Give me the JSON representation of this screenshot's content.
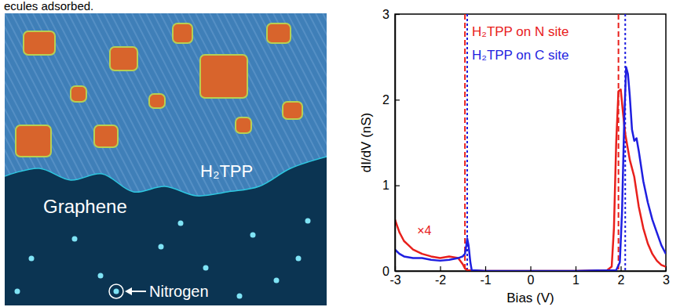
{
  "caption_fragment": "ecules adsorbed.",
  "image": {
    "labels": [
      "H₂TPP",
      "Graphene",
      "Nitrogen"
    ]
  },
  "chart_data": {
    "type": "line",
    "xlabel": "Bias (V)",
    "ylabel": "dI/dV (nS)",
    "xlim": [
      -3,
      3
    ],
    "xticks": [
      -3,
      -2,
      -1,
      0,
      1,
      2,
      3
    ],
    "ylim": [
      0,
      3
    ],
    "yticks": [
      0,
      1,
      2,
      3
    ],
    "legend": "upper center",
    "annotations": [
      {
        "text": "×4",
        "x": -2.35,
        "y": 0.42,
        "color": "#e8201c"
      }
    ],
    "series": [
      {
        "name": "H₂TPP on N site",
        "color": "#e8201c",
        "x": [
          -3,
          -2.9,
          -2.8,
          -2.7,
          -2.6,
          -2.4,
          -2.2,
          -2.0,
          -1.8,
          -1.6,
          -1.5,
          -1.45,
          -1.4,
          -1,
          0,
          1,
          1.7,
          1.8,
          1.85,
          1.9,
          1.95,
          2.0,
          2.05,
          2.1,
          2.2,
          2.3,
          2.4,
          2.5,
          2.6,
          2.7,
          2.8,
          2.9,
          3.0
        ],
        "values": [
          0.6,
          0.45,
          0.35,
          0.3,
          0.25,
          0.2,
          0.17,
          0.15,
          0.17,
          0.15,
          0.08,
          0.03,
          0.01,
          0,
          0,
          0,
          0.01,
          0.05,
          0.5,
          1.5,
          2.1,
          2.12,
          1.85,
          1.6,
          1.3,
          1.1,
          0.75,
          0.5,
          0.32,
          0.2,
          0.12,
          0.07,
          0.05
        ],
        "onsets": [
          -1.45,
          1.95
        ]
      },
      {
        "name": "H₂TPP on C site",
        "color": "#1f1fe0",
        "x": [
          -3,
          -2.9,
          -2.8,
          -2.6,
          -2.4,
          -2.2,
          -2.0,
          -1.8,
          -1.6,
          -1.5,
          -1.45,
          -1.42,
          -1.4,
          -1.37,
          -1.33,
          -1.3,
          -1,
          0,
          1,
          1.9,
          1.98,
          2.03,
          2.08,
          2.12,
          2.16,
          2.2,
          2.25,
          2.3,
          2.35,
          2.4,
          2.5,
          2.6,
          2.7,
          2.8,
          2.9,
          3.0
        ],
        "values": [
          0.25,
          0.2,
          0.17,
          0.15,
          0.15,
          0.13,
          0.12,
          0.13,
          0.15,
          0.17,
          0.2,
          0.3,
          0.38,
          0.3,
          0.1,
          0.01,
          0,
          0,
          0,
          0.01,
          0.1,
          0.7,
          1.8,
          2.38,
          2.3,
          2.05,
          1.65,
          1.52,
          1.55,
          1.4,
          1.05,
          0.8,
          0.6,
          0.45,
          0.3,
          0.2
        ],
        "onsets": [
          -1.4,
          2.1
        ]
      }
    ]
  }
}
